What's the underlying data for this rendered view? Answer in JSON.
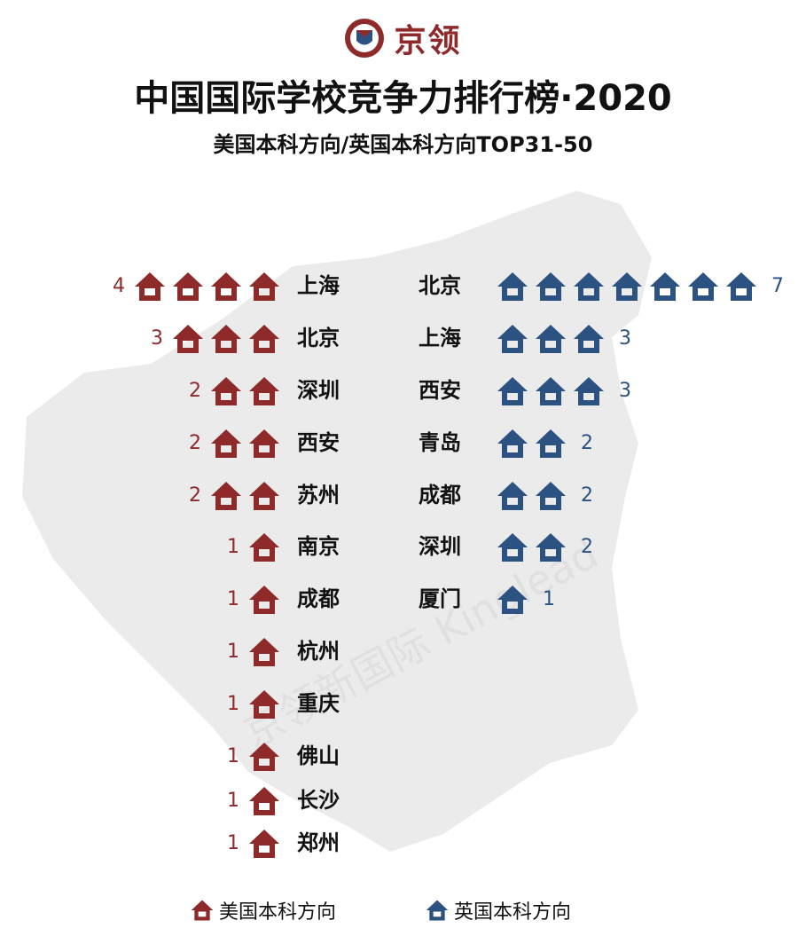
{
  "header": {
    "brand_name": "京领",
    "title": "中国国际学校竞争力排行榜·2020",
    "subtitle": "美国本科方向/英国本科方向TOP31-50"
  },
  "watermark": "京领新国际 Kinglead",
  "colors": {
    "us": "#8e2a2a",
    "uk": "#2c5282",
    "map": "#ebebeb",
    "label": "#111111"
  },
  "icons": {
    "school": "school-house-icon",
    "logo": "kinglead-shield-icon"
  },
  "chart_data": [
    {
      "type": "pictograph",
      "series_name": "美国本科方向",
      "color": "#8e2a2a",
      "categories": [
        "上海",
        "北京",
        "深圳",
        "西安",
        "苏州",
        "南京",
        "成都",
        "杭州",
        "重庆",
        "佛山",
        "长沙",
        "郑州"
      ],
      "values": [
        4,
        3,
        2,
        2,
        2,
        1,
        1,
        1,
        1,
        1,
        1,
        1
      ]
    },
    {
      "type": "pictograph",
      "series_name": "英国本科方向",
      "color": "#2c5282",
      "categories": [
        "北京",
        "上海",
        "西安",
        "青岛",
        "成都",
        "深圳",
        "厦门"
      ],
      "values": [
        7,
        3,
        3,
        2,
        2,
        2,
        1
      ]
    }
  ],
  "legend": {
    "us_label": "美国本科方向",
    "uk_label": "英国本科方向"
  }
}
